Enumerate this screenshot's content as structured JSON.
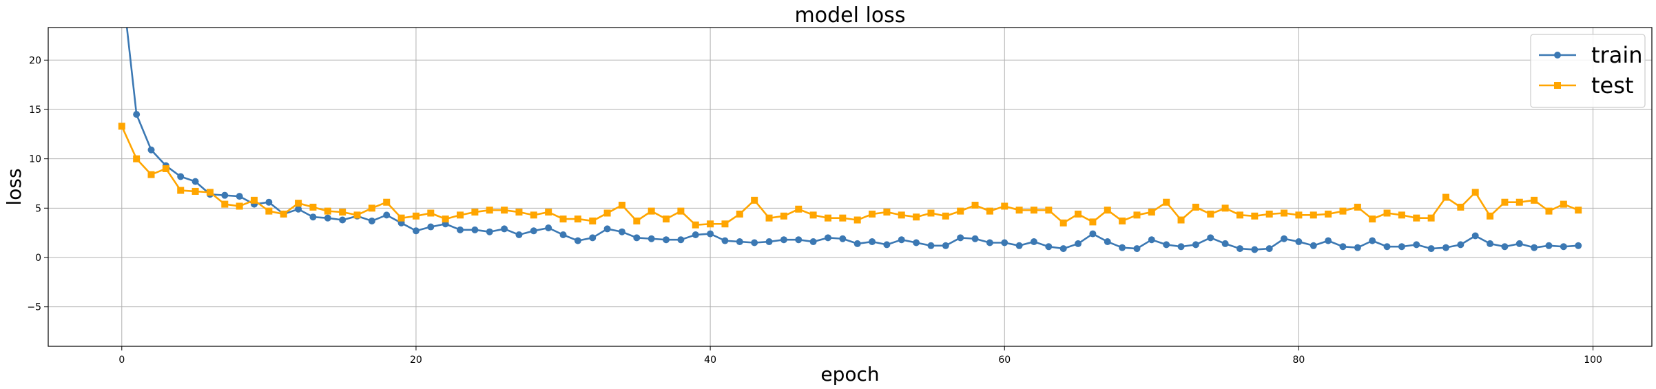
{
  "chart_data": {
    "type": "line",
    "title": "model loss",
    "xlabel": "epoch",
    "ylabel": "loss",
    "xlim": [
      -5,
      104
    ],
    "ylim": [
      -9,
      23.3
    ],
    "xticks": [
      0,
      20,
      40,
      60,
      80,
      100
    ],
    "yticks": [
      -5,
      0,
      5,
      10,
      15,
      20
    ],
    "grid": true,
    "legend_position": "top-right",
    "x": [
      0,
      1,
      2,
      3,
      4,
      5,
      6,
      7,
      8,
      9,
      10,
      11,
      12,
      13,
      14,
      15,
      16,
      17,
      18,
      19,
      20,
      21,
      22,
      23,
      24,
      25,
      26,
      27,
      28,
      29,
      30,
      31,
      32,
      33,
      34,
      35,
      36,
      37,
      38,
      39,
      40,
      41,
      42,
      43,
      44,
      45,
      46,
      47,
      48,
      49,
      50,
      51,
      52,
      53,
      54,
      55,
      56,
      57,
      58,
      59,
      60,
      61,
      62,
      63,
      64,
      65,
      66,
      67,
      68,
      69,
      70,
      71,
      72,
      73,
      74,
      75,
      76,
      77,
      78,
      79,
      80,
      81,
      82,
      83,
      84,
      85,
      86,
      87,
      88,
      89,
      90,
      91,
      92,
      93,
      94,
      95,
      96,
      97,
      98,
      99
    ],
    "series": [
      {
        "name": "train",
        "color": "#3b78b3",
        "marker": "circle",
        "values": [
          28.0,
          14.5,
          10.9,
          9.3,
          8.2,
          7.7,
          6.4,
          6.3,
          6.2,
          5.4,
          5.6,
          4.4,
          4.9,
          4.1,
          4.0,
          3.8,
          4.2,
          3.7,
          4.3,
          3.5,
          2.7,
          3.1,
          3.4,
          2.8,
          2.8,
          2.6,
          2.9,
          2.3,
          2.7,
          3.0,
          2.3,
          1.7,
          2.0,
          2.9,
          2.6,
          2.0,
          1.9,
          1.8,
          1.8,
          2.3,
          2.4,
          1.7,
          1.6,
          1.5,
          1.6,
          1.8,
          1.8,
          1.6,
          2.0,
          1.9,
          1.4,
          1.6,
          1.3,
          1.8,
          1.5,
          1.2,
          1.2,
          2.0,
          1.9,
          1.5,
          1.5,
          1.2,
          1.6,
          1.1,
          0.9,
          1.4,
          2.4,
          1.6,
          1.0,
          0.9,
          1.8,
          1.3,
          1.1,
          1.3,
          2.0,
          1.4,
          0.9,
          0.8,
          0.9,
          1.9,
          1.6,
          1.2,
          1.7,
          1.1,
          1.0,
          1.7,
          1.1,
          1.1,
          1.3,
          0.9,
          1.0,
          1.3,
          2.2,
          1.4,
          1.1,
          1.4,
          1.0,
          1.2,
          1.1,
          1.2
        ]
      },
      {
        "name": "test",
        "color": "#ffa500",
        "marker": "square",
        "values": [
          13.3,
          10.0,
          8.4,
          9.0,
          6.8,
          6.7,
          6.6,
          5.4,
          5.2,
          5.8,
          4.7,
          4.4,
          5.5,
          5.1,
          4.7,
          4.6,
          4.3,
          5.0,
          5.6,
          4.0,
          4.2,
          4.5,
          3.9,
          4.3,
          4.6,
          4.8,
          4.8,
          4.6,
          4.3,
          4.6,
          3.9,
          3.9,
          3.7,
          4.5,
          5.3,
          3.7,
          4.7,
          3.9,
          4.7,
          3.3,
          3.4,
          3.4,
          4.4,
          5.8,
          4.0,
          4.2,
          4.9,
          4.3,
          4.0,
          4.0,
          3.8,
          4.4,
          4.6,
          4.3,
          4.1,
          4.5,
          4.2,
          4.7,
          5.3,
          4.7,
          5.2,
          4.8,
          4.8,
          4.8,
          3.5,
          4.4,
          3.6,
          4.8,
          3.7,
          4.3,
          4.6,
          5.6,
          3.8,
          5.1,
          4.4,
          5.0,
          4.3,
          4.2,
          4.4,
          4.5,
          4.3,
          4.3,
          4.4,
          4.7,
          5.1,
          3.9,
          4.5,
          4.3,
          4.0,
          4.0,
          6.1,
          5.1,
          6.6,
          4.2,
          5.6,
          5.6,
          5.8,
          4.7,
          5.4,
          4.8
        ]
      }
    ]
  }
}
